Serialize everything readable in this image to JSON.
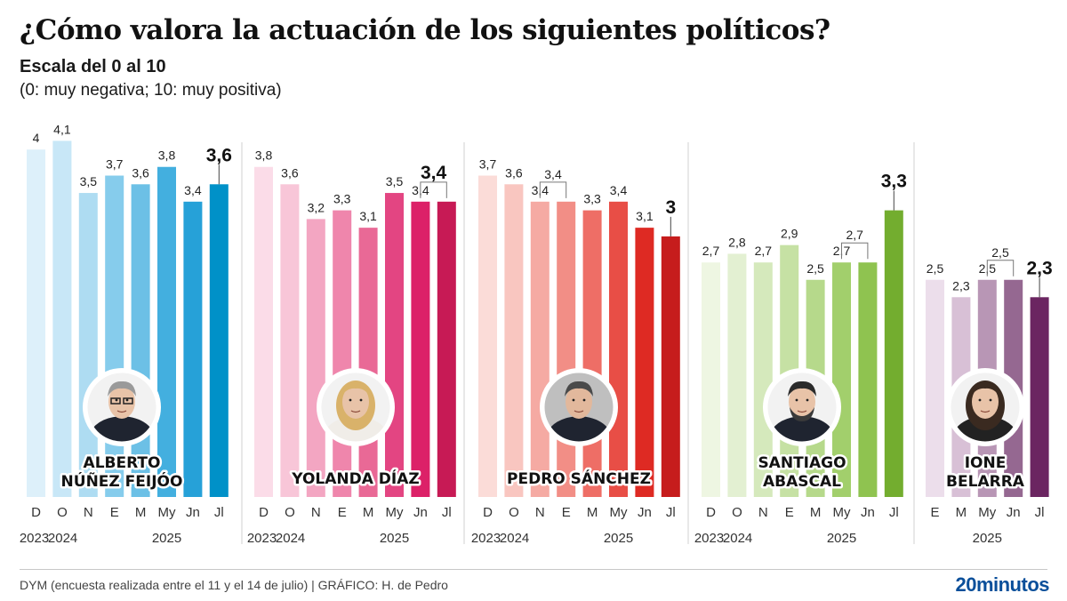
{
  "header": {
    "title": "¿Cómo valora la actuación de los siguientes políticos?",
    "subtitle": "Escala del 0 al 10",
    "subtitle2": "(0: muy negativa; 10: muy positiva)"
  },
  "footer": {
    "source": "DYM (encuesta realizada entre el 11 y el 14 de julio)  |  GRÁFICO: H. de Pedro",
    "brand": "20minutos"
  },
  "chart_data": [
    {
      "type": "bar",
      "politician": [
        "ALBERTO",
        "NÚÑEZ FEIJÓO"
      ],
      "photo": "politician-photo-feijoo",
      "categories": [
        "D",
        "O",
        "N",
        "E",
        "M",
        "My",
        "Jn",
        "Jl"
      ],
      "values": [
        4,
        4.1,
        3.5,
        3.7,
        3.6,
        3.8,
        3.4,
        3.6
      ],
      "value_labels": [
        "4",
        "4,1",
        "3,5",
        "3,7",
        "3,6",
        "3,8",
        "3,4",
        "3,6"
      ],
      "year_labels": [
        "2023",
        "2024",
        "2025"
      ],
      "colors": [
        "#ddf0fa",
        "#c8e7f7",
        "#aedcf2",
        "#86ccec",
        "#6cc0e6",
        "#43afdf",
        "#26a1d8",
        "#0091c8"
      ],
      "ylim": [
        0,
        10
      ]
    },
    {
      "type": "bar",
      "politician": [
        "YOLANDA DÍAZ"
      ],
      "photo": "politician-photo-diaz",
      "categories": [
        "D",
        "O",
        "N",
        "E",
        "M",
        "My",
        "Jn",
        "Jl"
      ],
      "values": [
        3.8,
        3.6,
        3.2,
        3.3,
        3.1,
        3.5,
        3.4,
        3.4
      ],
      "value_labels": [
        "3,8",
        "3,6",
        "3,2",
        "3,3",
        "3,1",
        "3,5",
        "3,4",
        "3,4"
      ],
      "year_labels": [
        "2023",
        "2024",
        "2025"
      ],
      "colors": [
        "#fbdce8",
        "#f8c6d8",
        "#f3a6c2",
        "#ef86ac",
        "#e96996",
        "#e34582",
        "#dc2168",
        "#c71a55"
      ],
      "ylim": [
        0,
        10
      ]
    },
    {
      "type": "bar",
      "politician": [
        "PEDRO SÁNCHEZ"
      ],
      "photo": "politician-photo-sanchez",
      "categories": [
        "D",
        "O",
        "N",
        "E",
        "M",
        "My",
        "Jn",
        "Jl"
      ],
      "values": [
        3.7,
        3.6,
        3.4,
        3.4,
        3.3,
        3.4,
        3.1,
        3
      ],
      "value_labels": [
        "3,7",
        "3,6",
        "3,4",
        "3,4",
        "3,3",
        "3,4",
        "3,1",
        "3"
      ],
      "year_labels": [
        "2023",
        "2024",
        "2025"
      ],
      "colors": [
        "#fbdcd8",
        "#f9c6c0",
        "#f5aaa3",
        "#f28e86",
        "#ee6e66",
        "#e84e46",
        "#de2a23",
        "#c61c1c"
      ],
      "ylim": [
        0,
        10
      ]
    },
    {
      "type": "bar",
      "politician": [
        "SANTIAGO",
        "ABASCAL"
      ],
      "photo": "politician-photo-abascal",
      "categories": [
        "D",
        "O",
        "N",
        "E",
        "M",
        "My",
        "Jn",
        "Jl"
      ],
      "values": [
        2.7,
        2.8,
        2.7,
        2.9,
        2.5,
        2.7,
        2.7,
        3.3
      ],
      "value_labels": [
        "2,7",
        "2,8",
        "2,7",
        "2,9",
        "2,5",
        "2,7",
        "2,7",
        "3,3"
      ],
      "year_labels": [
        "2023",
        "2024",
        "2025"
      ],
      "colors": [
        "#eef6e2",
        "#e3f0d2",
        "#d5e9bc",
        "#c6e1a4",
        "#b6d98b",
        "#a2cf6c",
        "#8fc350",
        "#73ad2f"
      ],
      "ylim": [
        0,
        10
      ]
    },
    {
      "type": "bar",
      "politician": [
        "IONE",
        "BELARRA"
      ],
      "photo": "politician-photo-belarra",
      "categories": [
        "E",
        "M",
        "My",
        "Jn",
        "Jl"
      ],
      "values": [
        2.5,
        2.3,
        2.5,
        2.5,
        2.3
      ],
      "value_labels": [
        "2,5",
        "2,3",
        "2,5",
        "2,5",
        "2,3"
      ],
      "year_labels": [
        "2025"
      ],
      "colors": [
        "#ecdeeb",
        "#d8c0d6",
        "#b896b5",
        "#956891",
        "#6b2561"
      ],
      "ylim": [
        0,
        10
      ]
    }
  ]
}
